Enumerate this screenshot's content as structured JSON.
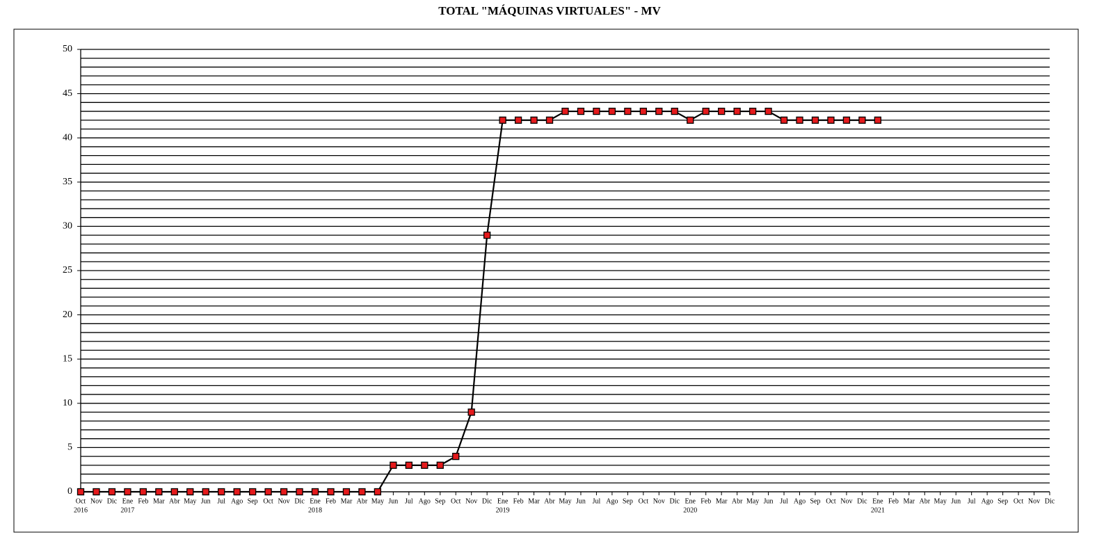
{
  "chart_data": {
    "type": "line",
    "title": "TOTAL \"MÁQUINAS VIRTUALES\" - MV",
    "categories": [
      "Oct",
      "Nov",
      "Dic",
      "Ene",
      "Feb",
      "Mar",
      "Abr",
      "May",
      "Jun",
      "Jul",
      "Ago",
      "Sep",
      "Oct",
      "Nov",
      "Dic",
      "Ene",
      "Feb",
      "Mar",
      "Abr",
      "May",
      "Jun",
      "Jul",
      "Ago",
      "Sep",
      "Oct",
      "Nov",
      "Dic",
      "Ene",
      "Feb",
      "Mar",
      "Abr",
      "May",
      "Jun",
      "Jul",
      "Ago",
      "Sep",
      "Oct",
      "Nov",
      "Dic",
      "Ene",
      "Feb",
      "Mar",
      "Abr",
      "May",
      "Jun",
      "Jul",
      "Ago",
      "Sep",
      "Oct",
      "Nov",
      "Dic",
      "Ene",
      "Feb",
      "Mar",
      "Abr",
      "May",
      "Jun",
      "Jul",
      "Ago",
      "Sep",
      "Oct",
      "Nov",
      "Dic"
    ],
    "years": [
      "2016",
      null,
      null,
      "2017",
      null,
      null,
      null,
      null,
      null,
      null,
      null,
      null,
      null,
      null,
      null,
      "2018",
      null,
      null,
      null,
      null,
      null,
      null,
      null,
      null,
      null,
      null,
      null,
      "2019",
      null,
      null,
      null,
      null,
      null,
      null,
      null,
      null,
      null,
      null,
      null,
      "2020",
      null,
      null,
      null,
      null,
      null,
      null,
      null,
      null,
      null,
      null,
      null,
      "2021",
      null,
      null,
      null,
      null,
      null,
      null,
      null,
      null,
      null,
      null,
      null
    ],
    "values": [
      0,
      0,
      0,
      0,
      0,
      0,
      0,
      0,
      0,
      0,
      0,
      0,
      0,
      0,
      0,
      0,
      0,
      0,
      0,
      0,
      3,
      3,
      3,
      3,
      4,
      9,
      29,
      42,
      42,
      42,
      42,
      43,
      43,
      43,
      43,
      43,
      43,
      43,
      43,
      42,
      43,
      43,
      43,
      43,
      43,
      42,
      42,
      42,
      42,
      42,
      42,
      42,
      null,
      null,
      null,
      null,
      null,
      null,
      null,
      null,
      null,
      null,
      null
    ],
    "color": "#000000",
    "marker_color": "#e41a1c",
    "ylim": [
      0,
      50
    ],
    "yticks": [
      0,
      5,
      10,
      15,
      20,
      25,
      30,
      35,
      40,
      45,
      50
    ],
    "grid": true,
    "grid_step": 1
  }
}
